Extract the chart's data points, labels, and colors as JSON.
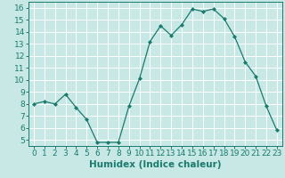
{
  "x": [
    0,
    1,
    2,
    3,
    4,
    5,
    6,
    7,
    8,
    9,
    10,
    11,
    12,
    13,
    14,
    15,
    16,
    17,
    18,
    19,
    20,
    21,
    22,
    23
  ],
  "y": [
    8,
    8.2,
    8,
    8.8,
    7.7,
    6.7,
    4.8,
    4.8,
    4.8,
    7.8,
    10.1,
    13.2,
    14.5,
    13.7,
    14.6,
    15.9,
    15.7,
    15.9,
    15.1,
    13.6,
    11.5,
    10.3,
    7.8,
    5.8
  ],
  "line_color": "#1a7a6e",
  "marker": "D",
  "marker_size": 2.0,
  "bg_color": "#c8e8e5",
  "grid_color": "#ffffff",
  "xlabel": "Humidex (Indice chaleur)",
  "ylim": [
    4.5,
    16.5
  ],
  "xlim": [
    -0.5,
    23.5
  ],
  "yticks": [
    5,
    6,
    7,
    8,
    9,
    10,
    11,
    12,
    13,
    14,
    15,
    16
  ],
  "xtick_labels": [
    "0",
    "1",
    "2",
    "3",
    "4",
    "5",
    "6",
    "7",
    "8",
    "9",
    "10",
    "11",
    "12",
    "13",
    "14",
    "15",
    "16",
    "17",
    "18",
    "19",
    "20",
    "21",
    "22",
    "23"
  ],
  "tick_color": "#1a7a6e",
  "label_color": "#1a7a6e",
  "label_fontsize": 7.5,
  "tick_fontsize": 6.5
}
